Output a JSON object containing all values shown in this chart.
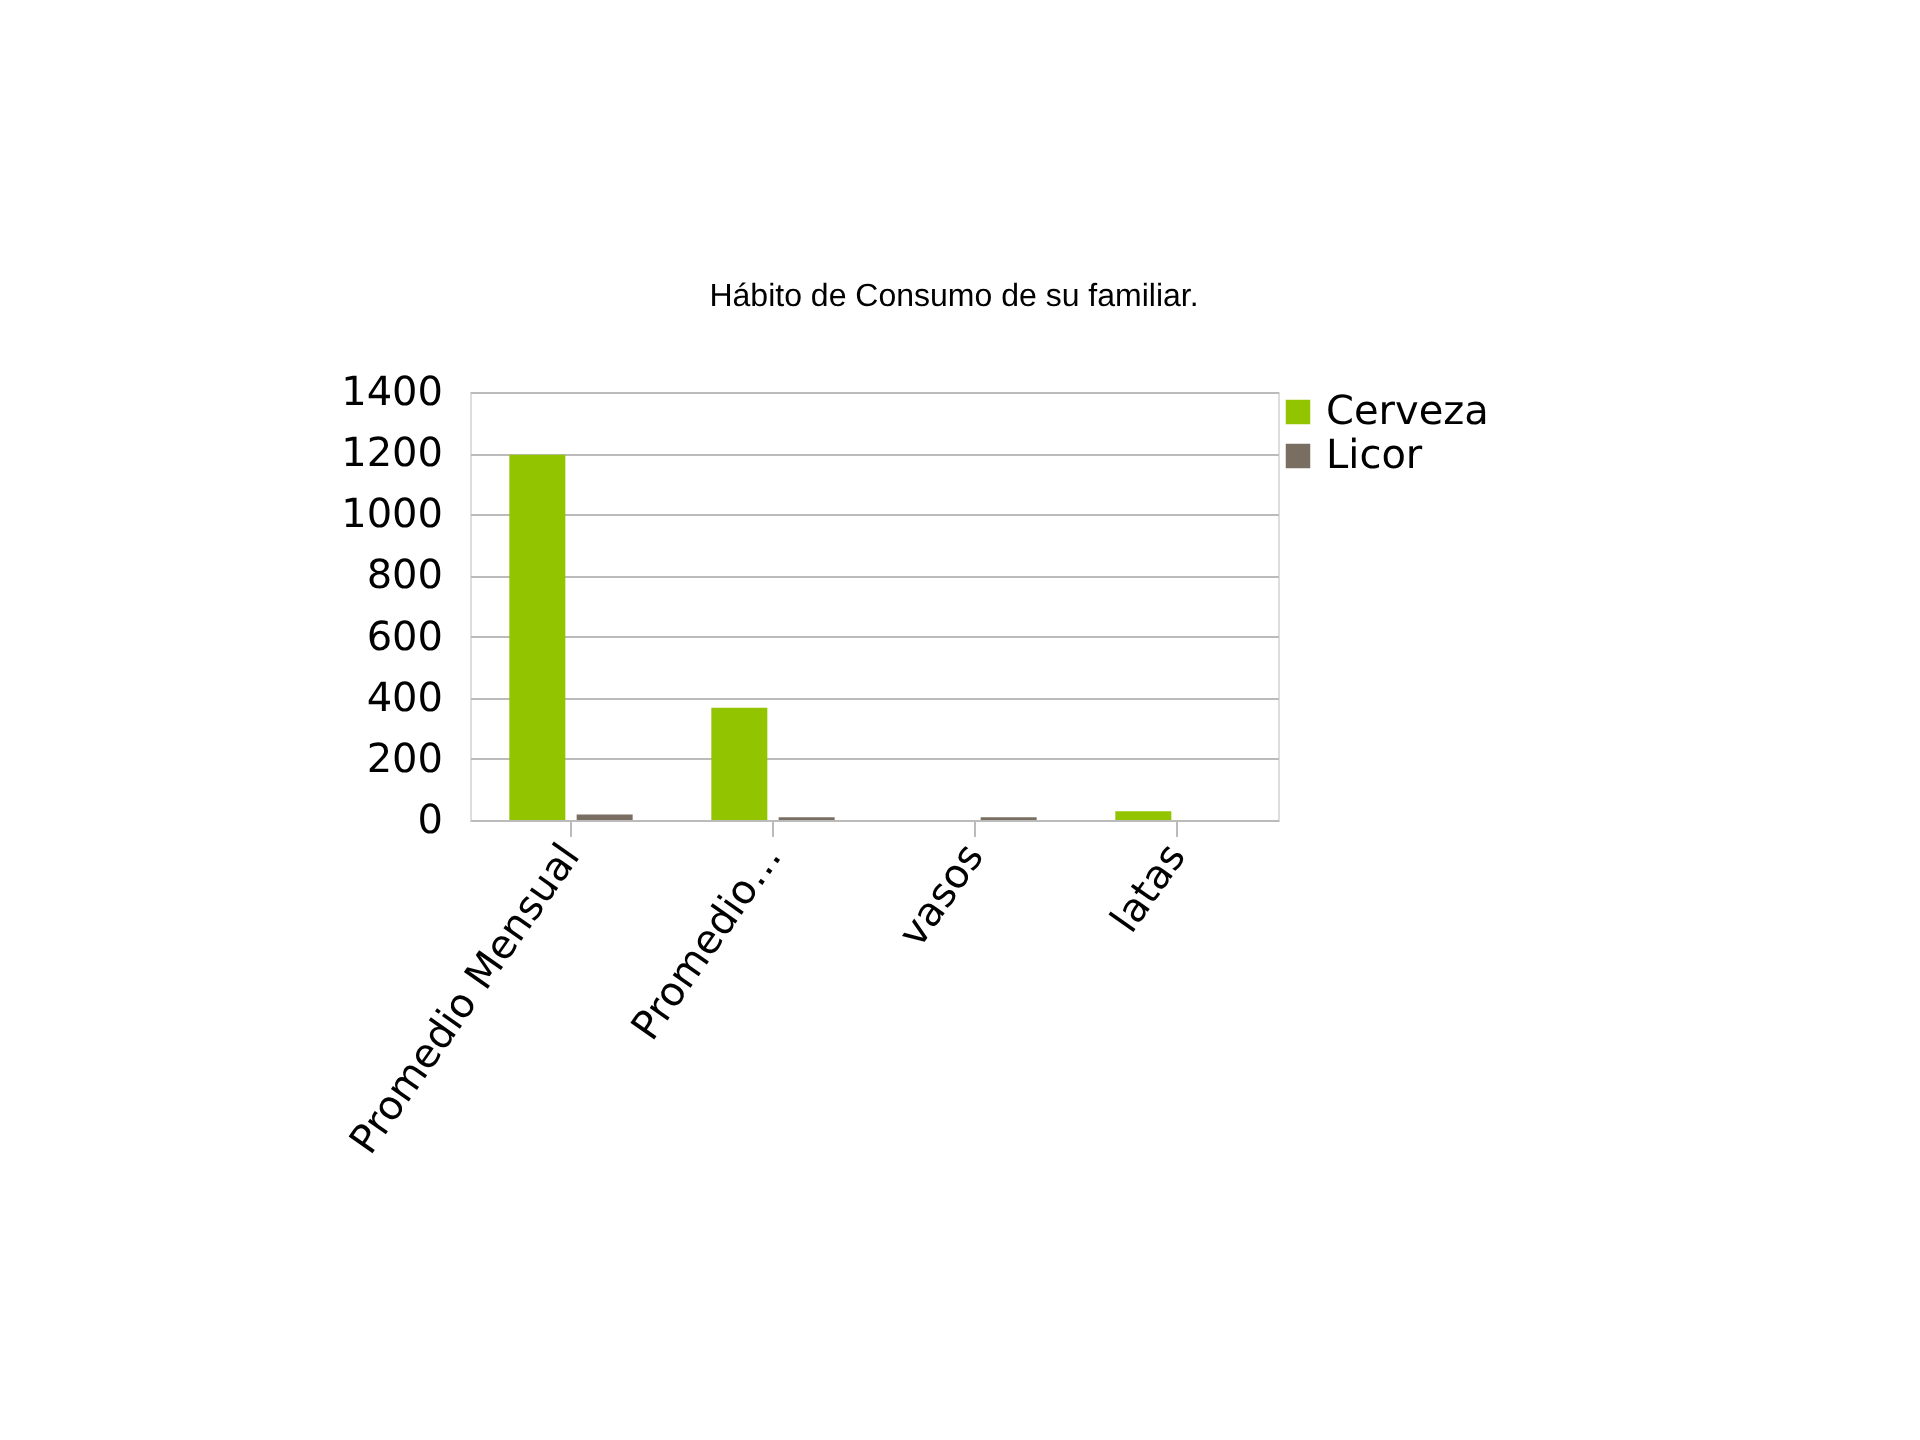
{
  "chart_data": {
    "type": "bar",
    "title": "Hábito de Consumo de su familiar.",
    "categories": [
      "Promedio Mensual",
      "Promedio…",
      "vasos",
      "latas"
    ],
    "series": [
      {
        "name": "Cerveza",
        "color": "#92c400",
        "values": [
          1195,
          367,
          0,
          29
        ]
      },
      {
        "name": "Licor",
        "color": "#7a6e62",
        "values": [
          18,
          9,
          9,
          0
        ]
      }
    ],
    "ylim": [
      0,
      1400
    ],
    "yticks": [
      0,
      200,
      400,
      600,
      800,
      1000,
      1200,
      1400
    ],
    "grid": "y",
    "legend": "right"
  }
}
